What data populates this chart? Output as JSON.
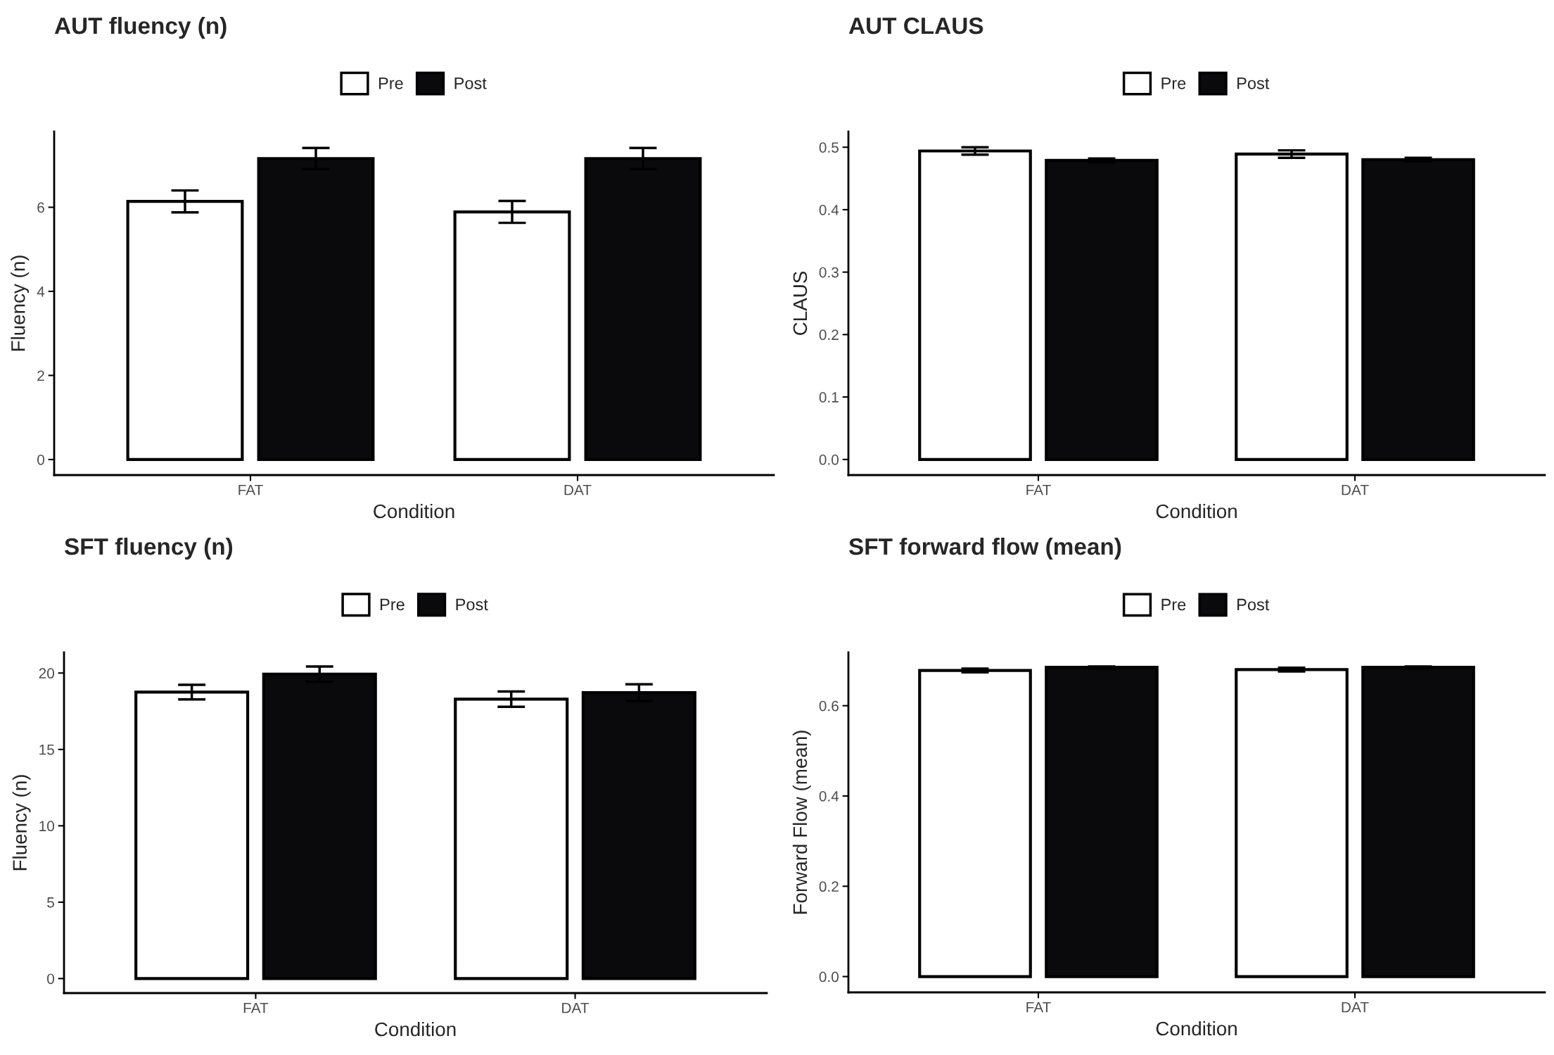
{
  "chart_data": [
    {
      "type": "bar",
      "title": "AUT fluency (n)",
      "xlabel": "Condition",
      "ylabel": "Fluency (n)",
      "categories": [
        "FAT",
        "DAT"
      ],
      "legend": "top",
      "series": [
        {
          "name": "Pre",
          "color": "#ffffff",
          "values": [
            6.14,
            5.89
          ],
          "errors": [
            0.26,
            0.26
          ]
        },
        {
          "name": "Post",
          "color": "#0a0a0c",
          "values": [
            7.16,
            7.16
          ],
          "errors": [
            0.25,
            0.25
          ]
        }
      ],
      "ylim": [
        -0.37,
        7.8
      ],
      "yticks": [
        0,
        2,
        4,
        6
      ]
    },
    {
      "type": "bar",
      "title": "AUT CLAUS",
      "xlabel": "Condition",
      "ylabel": "CLAUS",
      "categories": [
        "FAT",
        "DAT"
      ],
      "legend": "top",
      "series": [
        {
          "name": "Pre",
          "color": "#ffffff",
          "values": [
            0.494,
            0.489
          ],
          "errors": [
            0.006,
            0.006
          ]
        },
        {
          "name": "Post",
          "color": "#0a0a0c",
          "values": [
            0.479,
            0.48
          ],
          "errors": [
            0.003,
            0.003
          ]
        }
      ],
      "ylim": [
        -0.025,
        0.525
      ],
      "yticks": [
        {
          "value": 0,
          "label": "0.0"
        },
        0.1,
        0.2,
        0.3,
        0.4,
        0.5
      ]
    },
    {
      "type": "bar",
      "title": "SFT fluency (n)",
      "xlabel": "Condition",
      "ylabel": "Fluency (n)",
      "categories": [
        "FAT",
        "DAT"
      ],
      "legend": "top",
      "series": [
        {
          "name": "Pre",
          "color": "#ffffff",
          "values": [
            18.75,
            18.29
          ],
          "errors": [
            0.48,
            0.5
          ]
        },
        {
          "name": "Post",
          "color": "#0a0a0c",
          "values": [
            19.93,
            18.72
          ],
          "errors": [
            0.5,
            0.55
          ]
        }
      ],
      "ylim": [
        -0.95,
        21.35
      ],
      "yticks": [
        0,
        5,
        10,
        15,
        20
      ]
    },
    {
      "type": "bar",
      "title": "SFT forward flow (mean)",
      "xlabel": "Condition",
      "ylabel": "Forward Flow (mean)",
      "categories": [
        "FAT",
        "DAT"
      ],
      "legend": "top",
      "series": [
        {
          "name": "Pre",
          "color": "#ffffff",
          "values": [
            0.678,
            0.68
          ],
          "errors": [
            0.004,
            0.004
          ]
        },
        {
          "name": "Post",
          "color": "#0a0a0c",
          "values": [
            0.685,
            0.685
          ],
          "errors": [
            0.002,
            0.002
          ]
        }
      ],
      "ylim": [
        -0.035,
        0.718
      ],
      "yticks": [
        {
          "value": 0,
          "label": "0.0"
        },
        0.2,
        0.4,
        0.6
      ]
    }
  ]
}
